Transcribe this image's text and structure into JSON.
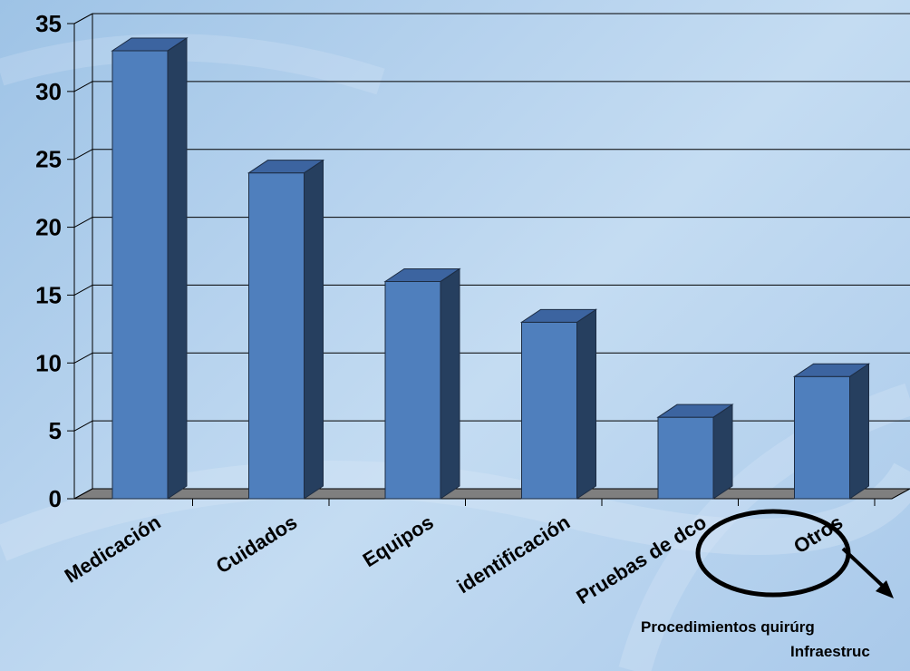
{
  "chart_data": {
    "type": "bar",
    "categories": [
      "Medicación",
      "Cuidados",
      "Equipos",
      "identificación",
      "Pruebas de dco",
      "Otros"
    ],
    "values": [
      33,
      24,
      16,
      13,
      6,
      9
    ],
    "ylim": [
      0,
      35
    ],
    "yticks": [
      0,
      5,
      10,
      15,
      20,
      25,
      30,
      35
    ],
    "grid": true,
    "colors": {
      "bar_front": "#4f7fbd",
      "bar_side": "#263f5f",
      "bar_top": "#3c64a0",
      "floor": "#7f7f7f",
      "gridline": "#000000"
    },
    "annotations": {
      "highlight_category": "Otros",
      "note_lines": [
        "Procedimientos quirúrg",
        "Infraestruc"
      ]
    }
  }
}
